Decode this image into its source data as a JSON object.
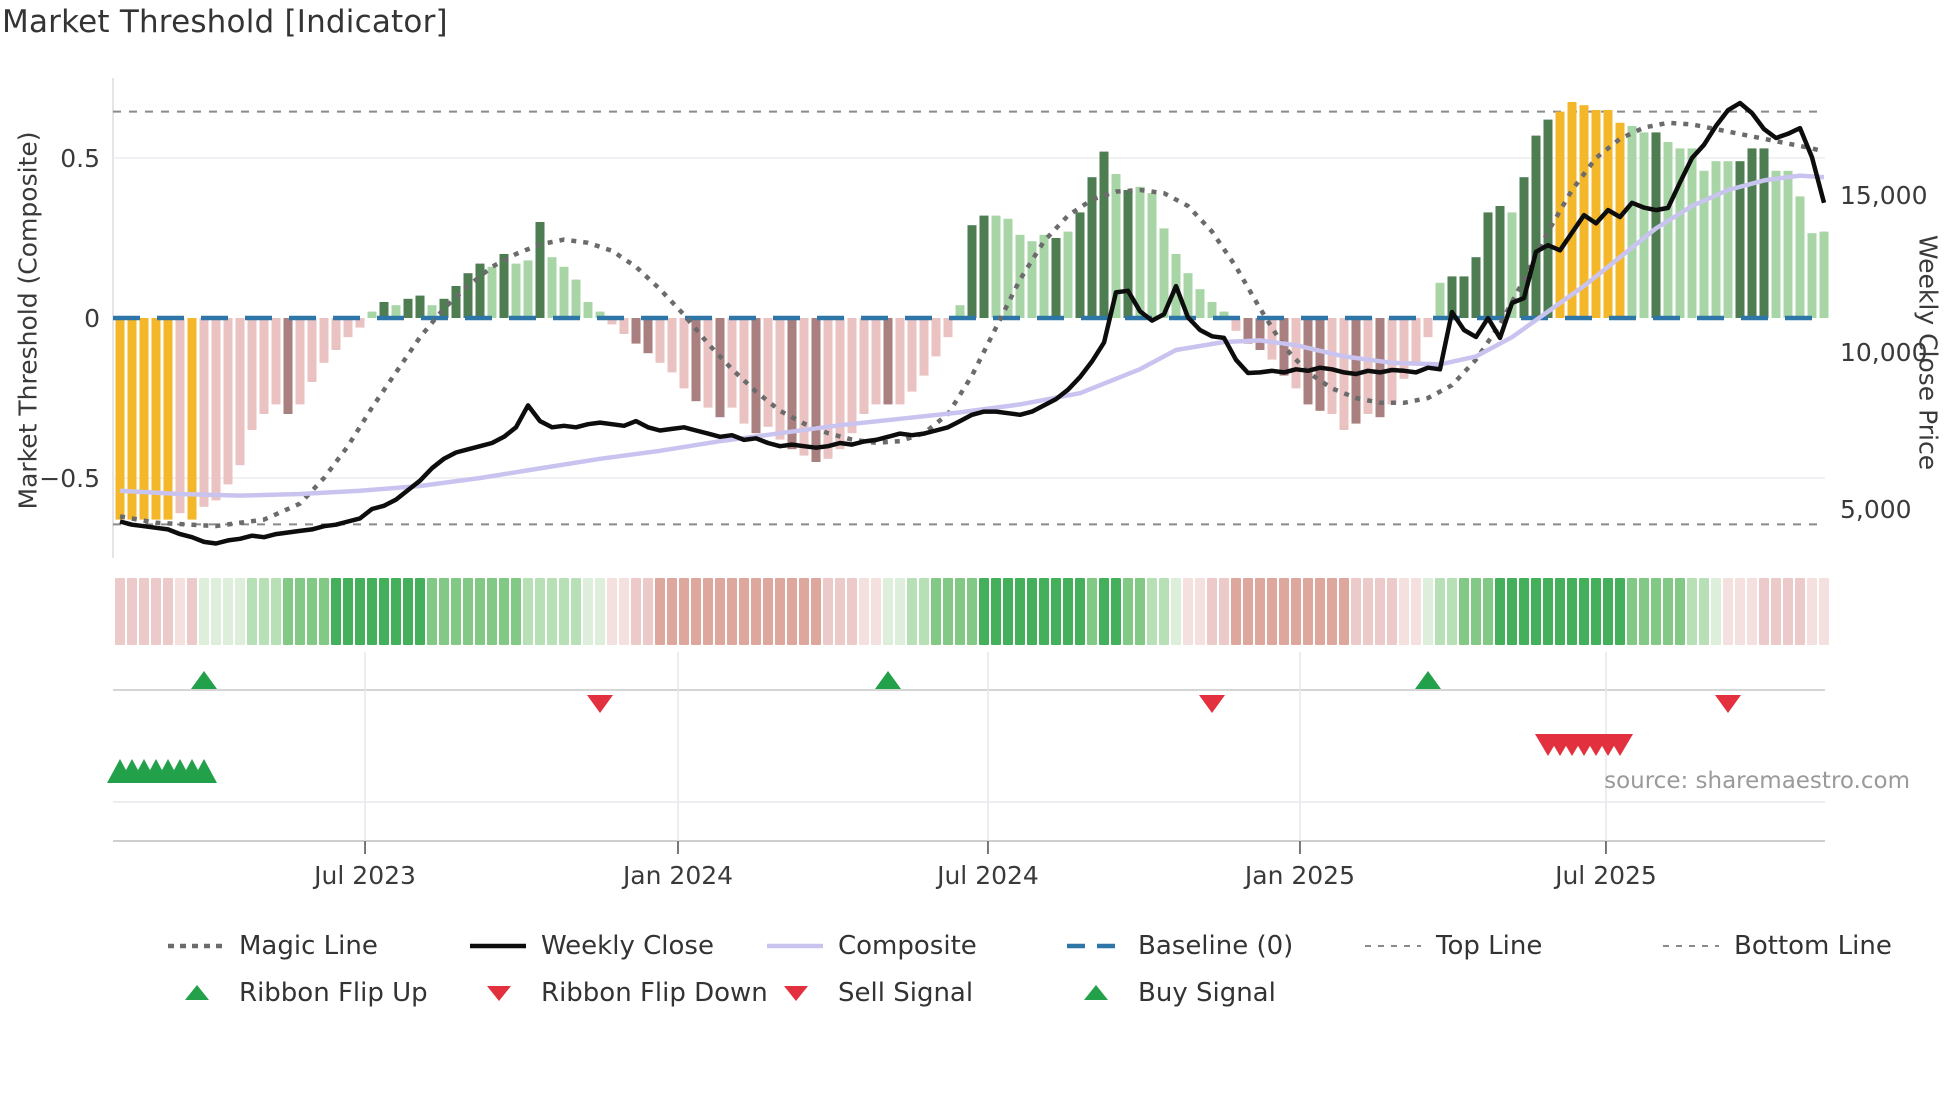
{
  "page": {
    "title": "Market Threshold [Indicator]"
  },
  "axes": {
    "left_label": "Market Threshold (Composite)",
    "right_label": "Weekly Close Price",
    "left_ticks": [
      {
        "label": "0.5",
        "value": 0.5
      },
      {
        "label": "0",
        "value": 0.0
      },
      {
        "label": "−0.5",
        "value": -0.5
      }
    ],
    "right_ticks": [
      {
        "label": "15,000",
        "value": 15000
      },
      {
        "label": "10,000",
        "value": 10000
      },
      {
        "label": "5,000",
        "value": 5000
      }
    ],
    "x_ticks": [
      {
        "label": "Jul 2023",
        "week": 20.42
      },
      {
        "label": "Jan 2024",
        "week": 46.5
      },
      {
        "label": "Jul 2024",
        "week": 72.33
      },
      {
        "label": "Jan 2025",
        "week": 98.33
      },
      {
        "label": "Jul 2025",
        "week": 123.83
      }
    ]
  },
  "source": "source: sharemaestro.com",
  "colors": {
    "bar_yellow": "#f5b72a",
    "bar_pink": "#ebc2c2",
    "bar_mauve": "#a97f7f",
    "bar_dark_green": "#4d7d51",
    "bar_light_green": "#a8d5a6",
    "weekly_close": "#0d0d0d",
    "composite": "#c9c3f0",
    "magic_line": "#6b6b6b",
    "baseline": "#2e76a8",
    "top_bottom_line": "#8a8a8a",
    "grid": "#ececf2",
    "panel_line": "#cfcfcf",
    "signal_green": "#22a04a",
    "signal_red": "#e2303e",
    "ribbon_green": [
      "#ddefdb",
      "#b7e0b6",
      "#82c985",
      "#44b05b"
    ],
    "ribbon_pink": [
      "#f5e0e0",
      "#eccaca",
      "#dda79e",
      "#cc8175"
    ]
  },
  "chart_data": {
    "type": "bar",
    "title": "Market Threshold [Indicator]",
    "ylabel_left": "Market Threshold (Composite)",
    "ylabel_right": "Weekly Close Price",
    "ylim_left": [
      -0.75,
      0.72
    ],
    "ylim_right": [
      2600,
      18500
    ],
    "baseline_value": 0,
    "top_line_value": 0.645,
    "bottom_line_value": -0.645,
    "weeks": 143,
    "bar_values": [
      -0.63,
      -0.63,
      -0.63,
      -0.63,
      -0.63,
      -0.61,
      -0.63,
      -0.59,
      -0.57,
      -0.52,
      -0.46,
      -0.35,
      -0.3,
      -0.27,
      -0.3,
      -0.27,
      -0.2,
      -0.14,
      -0.1,
      -0.06,
      -0.03,
      0.02,
      0.05,
      0.04,
      0.06,
      0.07,
      0.04,
      0.06,
      0.1,
      0.14,
      0.17,
      0.16,
      0.2,
      0.17,
      0.18,
      0.3,
      0.19,
      0.16,
      0.12,
      0.05,
      0.02,
      -0.02,
      -0.05,
      -0.08,
      -0.11,
      -0.14,
      -0.17,
      -0.22,
      -0.26,
      -0.28,
      -0.31,
      -0.28,
      -0.33,
      -0.36,
      -0.34,
      -0.38,
      -0.41,
      -0.43,
      -0.45,
      -0.44,
      -0.41,
      -0.36,
      -0.3,
      -0.27,
      -0.27,
      -0.27,
      -0.23,
      -0.18,
      -0.12,
      -0.06,
      0.04,
      0.29,
      0.32,
      0.32,
      0.31,
      0.26,
      0.24,
      0.26,
      0.25,
      0.27,
      0.33,
      0.44,
      0.52,
      0.45,
      0.4,
      0.41,
      0.39,
      0.28,
      0.2,
      0.14,
      0.09,
      0.05,
      0.02,
      -0.04,
      -0.08,
      -0.1,
      -0.13,
      -0.18,
      -0.22,
      -0.27,
      -0.29,
      -0.3,
      -0.35,
      -0.33,
      -0.3,
      -0.31,
      -0.27,
      -0.19,
      -0.14,
      -0.06,
      0.11,
      0.13,
      0.13,
      0.19,
      0.33,
      0.35,
      0.33,
      0.44,
      0.57,
      0.62,
      0.645,
      0.675,
      0.665,
      0.65,
      0.65,
      0.61,
      0.6,
      0.58,
      0.58,
      0.55,
      0.53,
      0.53,
      0.46,
      0.49,
      0.49,
      0.49,
      0.53,
      0.53,
      0.46,
      0.46,
      0.38,
      0.265,
      0.27
    ],
    "bar_colors": "YYYYYPYPPPPPPPMPPPPPPLDLDDLDDDDLDLLDLLLLLPPMMPPPMPMPPMPPMPMPPPPPMPPPPPLDDLLLLLDLDDDLDLLLLLLLLPMMPMPMMPPMPMPPPPLDDDDDLDDDYYYYYYLLDLLLLLLDDDLLLLL",
    "weekly_close": [
      4600,
      4500,
      4450,
      4400,
      4350,
      4200,
      4100,
      3950,
      3900,
      4000,
      4050,
      4150,
      4100,
      4200,
      4250,
      4300,
      4350,
      4450,
      4500,
      4600,
      4700,
      5000,
      5100,
      5300,
      5600,
      5900,
      6300,
      6600,
      6800,
      6900,
      7000,
      7100,
      7300,
      7600,
      8300,
      7800,
      7600,
      7650,
      7600,
      7700,
      7750,
      7700,
      7650,
      7800,
      7600,
      7500,
      7550,
      7600,
      7500,
      7400,
      7300,
      7350,
      7200,
      7250,
      7100,
      7000,
      7050,
      7000,
      6950,
      7000,
      7100,
      7050,
      7150,
      7200,
      7300,
      7400,
      7350,
      7400,
      7500,
      7600,
      7800,
      8000,
      8100,
      8100,
      8050,
      8000,
      8100,
      8300,
      8500,
      8800,
      9200,
      9700,
      10300,
      11900,
      11950,
      11300,
      11000,
      11200,
      12100,
      11100,
      10700,
      10500,
      10450,
      9750,
      9330,
      9350,
      9400,
      9350,
      9450,
      9400,
      9500,
      9450,
      9350,
      9300,
      9400,
      9350,
      9425,
      9400,
      9350,
      9500,
      9450,
      11270,
      10700,
      10480,
      11080,
      10450,
      11560,
      11720,
      13190,
      13400,
      13240,
      13800,
      14360,
      14100,
      14520,
      14300,
      14750,
      14600,
      14520,
      14590,
      15400,
      16180,
      16600,
      17200,
      17700,
      17930,
      17610,
      17100,
      16815,
      16950,
      17130,
      16200,
      14750
    ],
    "composite_anchors": [
      [
        0,
        -0.54
      ],
      [
        5,
        -0.55
      ],
      [
        10,
        -0.555
      ],
      [
        15,
        -0.55
      ],
      [
        20,
        -0.54
      ],
      [
        25,
        -0.525
      ],
      [
        30,
        -0.5
      ],
      [
        35,
        -0.47
      ],
      [
        40,
        -0.44
      ],
      [
        45,
        -0.415
      ],
      [
        50,
        -0.385
      ],
      [
        55,
        -0.36
      ],
      [
        60,
        -0.335
      ],
      [
        65,
        -0.315
      ],
      [
        70,
        -0.295
      ],
      [
        75,
        -0.27
      ],
      [
        80,
        -0.235
      ],
      [
        85,
        -0.16
      ],
      [
        88,
        -0.1
      ],
      [
        92,
        -0.075
      ],
      [
        95,
        -0.07
      ],
      [
        98,
        -0.085
      ],
      [
        102,
        -0.12
      ],
      [
        106,
        -0.14
      ],
      [
        110,
        -0.145
      ],
      [
        113,
        -0.12
      ],
      [
        116,
        -0.06
      ],
      [
        119,
        0.02
      ],
      [
        122,
        0.1
      ],
      [
        125,
        0.19
      ],
      [
        128,
        0.28
      ],
      [
        131,
        0.35
      ],
      [
        134,
        0.4
      ],
      [
        137,
        0.43
      ],
      [
        140,
        0.445
      ],
      [
        142,
        0.44
      ]
    ],
    "magic_anchors": [
      [
        0,
        -0.62
      ],
      [
        3,
        -0.64
      ],
      [
        8,
        -0.65
      ],
      [
        12,
        -0.63
      ],
      [
        15,
        -0.58
      ],
      [
        17,
        -0.5
      ],
      [
        19,
        -0.4
      ],
      [
        21,
        -0.28
      ],
      [
        23,
        -0.17
      ],
      [
        25,
        -0.06
      ],
      [
        27,
        0.03
      ],
      [
        29,
        0.1
      ],
      [
        31,
        0.16
      ],
      [
        33,
        0.2
      ],
      [
        35,
        0.23
      ],
      [
        37,
        0.245
      ],
      [
        39,
        0.235
      ],
      [
        41,
        0.21
      ],
      [
        43,
        0.16
      ],
      [
        45,
        0.09
      ],
      [
        47,
        0.01
      ],
      [
        49,
        -0.08
      ],
      [
        51,
        -0.16
      ],
      [
        53,
        -0.23
      ],
      [
        55,
        -0.29
      ],
      [
        57,
        -0.33
      ],
      [
        59,
        -0.36
      ],
      [
        61,
        -0.38
      ],
      [
        63,
        -0.39
      ],
      [
        65,
        -0.385
      ],
      [
        67,
        -0.36
      ],
      [
        69,
        -0.3
      ],
      [
        71,
        -0.18
      ],
      [
        73,
        -0.03
      ],
      [
        75,
        0.12
      ],
      [
        77,
        0.24
      ],
      [
        79,
        0.32
      ],
      [
        81,
        0.37
      ],
      [
        83,
        0.395
      ],
      [
        85,
        0.4
      ],
      [
        87,
        0.39
      ],
      [
        89,
        0.35
      ],
      [
        91,
        0.27
      ],
      [
        93,
        0.16
      ],
      [
        95,
        0.03
      ],
      [
        97,
        -0.09
      ],
      [
        99,
        -0.17
      ],
      [
        101,
        -0.22
      ],
      [
        103,
        -0.25
      ],
      [
        105,
        -0.265
      ],
      [
        107,
        -0.265
      ],
      [
        109,
        -0.25
      ],
      [
        111,
        -0.21
      ],
      [
        113,
        -0.13
      ],
      [
        115,
        -0.02
      ],
      [
        117,
        0.12
      ],
      [
        119,
        0.27
      ],
      [
        121,
        0.4
      ],
      [
        123,
        0.5
      ],
      [
        125,
        0.56
      ],
      [
        127,
        0.595
      ],
      [
        129,
        0.61
      ],
      [
        131,
        0.605
      ],
      [
        133,
        0.59
      ],
      [
        135,
        0.575
      ],
      [
        137,
        0.56
      ],
      [
        139,
        0.545
      ],
      [
        141,
        0.53
      ],
      [
        142,
        0.52
      ]
    ],
    "ribbon": [
      -2,
      -2,
      -2,
      -2,
      -2,
      -1,
      -2,
      1,
      1,
      1,
      1,
      2,
      2,
      2,
      3,
      3,
      3,
      3,
      4,
      4,
      4,
      4,
      4,
      4,
      4,
      4,
      3,
      3,
      3,
      3,
      3,
      3,
      3,
      3,
      2,
      2,
      2,
      2,
      2,
      1,
      1,
      -1,
      -1,
      -2,
      -2,
      -3,
      -3,
      -3,
      -3,
      -3,
      -3,
      -3,
      -3,
      -3,
      -3,
      -3,
      -3,
      -3,
      -3,
      -2,
      -2,
      -2,
      -1,
      -1,
      1,
      1,
      2,
      2,
      3,
      3,
      3,
      3,
      4,
      4,
      4,
      4,
      4,
      4,
      4,
      4,
      4,
      3,
      4,
      4,
      3,
      3,
      2,
      2,
      1,
      -1,
      -1,
      -2,
      -2,
      -3,
      -3,
      -3,
      -3,
      -3,
      -3,
      -3,
      -3,
      -3,
      -3,
      -2,
      -2,
      -2,
      -2,
      -1,
      -1,
      1,
      2,
      2,
      3,
      3,
      3,
      4,
      4,
      4,
      4,
      4,
      4,
      4,
      4,
      4,
      4,
      4,
      3,
      3,
      3,
      3,
      3,
      2,
      2,
      1,
      -1,
      -1,
      -1,
      -2,
      -2,
      -2,
      -2,
      -1,
      -1
    ],
    "signals": {
      "ribbon_flip_up_weeks": [
        7,
        64,
        109
      ],
      "ribbon_flip_down_weeks": [
        40,
        91,
        134
      ],
      "buy_signal_weeks": [
        0,
        1,
        2,
        3,
        4,
        5,
        6,
        7
      ],
      "sell_signal_weeks": [
        119,
        120,
        121,
        122,
        123,
        124,
        125
      ]
    }
  },
  "legend": {
    "items": [
      {
        "label": "Magic Line",
        "swatch": "dash-medium",
        "color": "#6b6b6b",
        "row": 0,
        "col": 0
      },
      {
        "label": "Weekly Close",
        "swatch": "line-solid",
        "color": "#0d0d0d",
        "row": 0,
        "col": 1
      },
      {
        "label": "Composite",
        "swatch": "line-solid",
        "color": "#c9c3f0",
        "row": 0,
        "col": 2
      },
      {
        "label": "Baseline (0)",
        "swatch": "dash-long",
        "color": "#2e76a8",
        "row": 0,
        "col": 3
      },
      {
        "label": "Top Line",
        "swatch": "dash-thin",
        "color": "#8a8a8a",
        "row": 0,
        "col": 4
      },
      {
        "label": "Bottom Line",
        "swatch": "dash-thin",
        "color": "#8a8a8a",
        "row": 0,
        "col": 5
      },
      {
        "label": "Ribbon Flip Up",
        "swatch": "triangle-up",
        "color": "#22a04a",
        "row": 1,
        "col": 0
      },
      {
        "label": "Ribbon Flip Down",
        "swatch": "triangle-down",
        "color": "#e2303e",
        "row": 1,
        "col": 1
      },
      {
        "label": "Sell Signal",
        "swatch": "triangle-down",
        "color": "#e2303e",
        "row": 1,
        "col": 2
      },
      {
        "label": "Buy Signal",
        "swatch": "triangle-up",
        "color": "#22a04a",
        "row": 1,
        "col": 3
      }
    ]
  }
}
